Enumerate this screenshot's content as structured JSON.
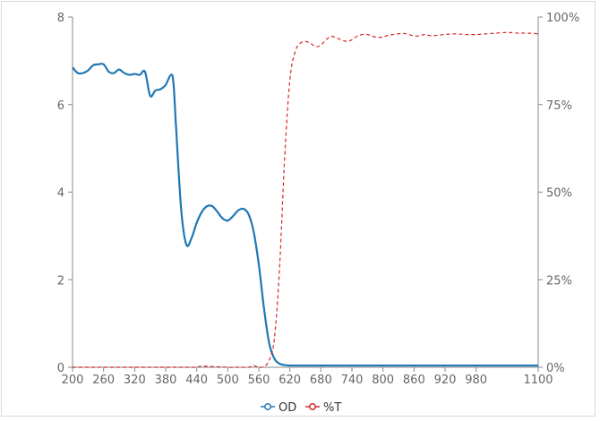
{
  "chart_data": {
    "type": "line",
    "title": "",
    "xlabel": "",
    "ylabel_left": "",
    "ylabel_right": "",
    "xlim": [
      200,
      1100
    ],
    "ylim_left": [
      0,
      8
    ],
    "ylim_right": [
      0,
      100
    ],
    "x_ticks": [
      "200",
      "260",
      "320",
      "380",
      "440",
      "500",
      "560",
      "620",
      "680",
      "740",
      "800",
      "860",
      "920",
      "980",
      "1100"
    ],
    "y_left_ticks": [
      "0",
      "2",
      "4",
      "6",
      "8"
    ],
    "y_right_ticks": [
      "0%",
      "25%",
      "50%",
      "75%",
      "100%"
    ],
    "legend_position": "bottom-center",
    "grid": false,
    "series": [
      {
        "name": "OD",
        "axis": "left",
        "color": "#1f77b4",
        "style": "solid",
        "x": [
          200,
          210,
          220,
          230,
          240,
          250,
          260,
          270,
          280,
          290,
          300,
          310,
          320,
          330,
          340,
          350,
          360,
          370,
          380,
          390,
          395,
          400,
          410,
          420,
          430,
          440,
          450,
          460,
          470,
          480,
          490,
          500,
          510,
          520,
          530,
          540,
          550,
          560,
          570,
          580,
          590,
          600,
          610,
          620,
          630,
          650,
          700,
          800,
          900,
          1000,
          1100
        ],
        "y": [
          6.85,
          6.72,
          6.72,
          6.78,
          6.9,
          6.92,
          6.92,
          6.75,
          6.72,
          6.8,
          6.72,
          6.68,
          6.7,
          6.68,
          6.75,
          6.2,
          6.32,
          6.35,
          6.45,
          6.68,
          6.5,
          5.5,
          3.6,
          2.8,
          2.95,
          3.3,
          3.55,
          3.68,
          3.68,
          3.55,
          3.4,
          3.35,
          3.45,
          3.58,
          3.62,
          3.5,
          3.1,
          2.35,
          1.35,
          0.55,
          0.2,
          0.08,
          0.05,
          0.04,
          0.04,
          0.04,
          0.04,
          0.04,
          0.04,
          0.04,
          0.04
        ]
      },
      {
        "name": "%T",
        "axis": "right",
        "color": "#d62728",
        "style": "dashed",
        "x": [
          200,
          300,
          400,
          420,
          440,
          450,
          500,
          520,
          540,
          550,
          560,
          570,
          580,
          590,
          600,
          610,
          620,
          630,
          640,
          650,
          660,
          670,
          680,
          690,
          700,
          710,
          720,
          730,
          740,
          750,
          760,
          770,
          780,
          790,
          800,
          810,
          820,
          830,
          840,
          850,
          860,
          870,
          880,
          890,
          900,
          920,
          940,
          960,
          980,
          1000,
          1020,
          1040,
          1060,
          1080,
          1100
        ],
        "y": [
          0,
          0,
          0,
          0,
          0,
          0.3,
          0,
          0,
          0,
          0.5,
          0,
          0.2,
          2,
          8,
          28,
          60,
          82,
          90,
          92.5,
          93,
          92.5,
          91.5,
          92,
          93.5,
          94.5,
          94,
          93.5,
          93,
          93.5,
          94.5,
          95,
          95,
          94.5,
          94.2,
          94.3,
          94.8,
          95,
          95.2,
          95.3,
          95,
          94.6,
          94.6,
          95,
          94.7,
          94.7,
          95,
          95.2,
          95,
          95,
          95.2,
          95.4,
          95.6,
          95.4,
          95.4,
          95.2
        ]
      }
    ]
  }
}
